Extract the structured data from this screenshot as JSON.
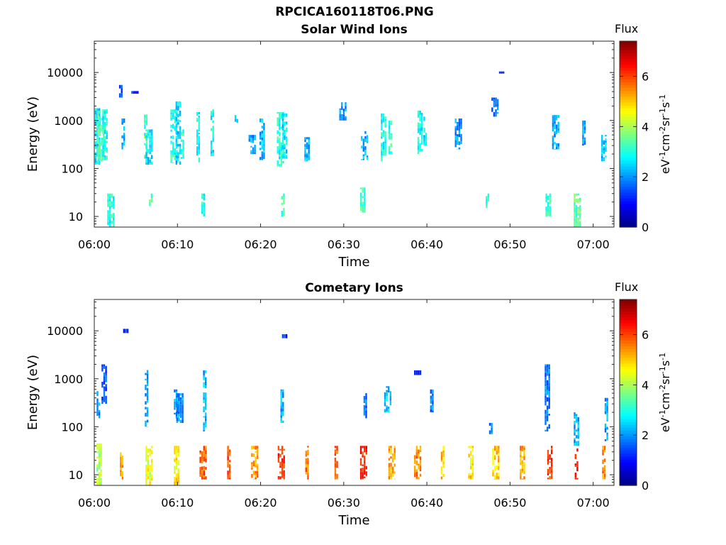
{
  "figure_title": "RPCICA160118T06.PNG",
  "colormap": [
    "#00007f",
    "#0000ff",
    "#007fff",
    "#00ffff",
    "#7fff7f",
    "#ffff00",
    "#ff7f00",
    "#ff0000",
    "#7f0000"
  ],
  "chart_data": [
    {
      "type": "heatmap",
      "title": "Solar Wind Ions",
      "xlabel": "Time",
      "ylabel": "Energy (eV)",
      "x_ticks": [
        "06:00",
        "06:10",
        "06:20",
        "06:30",
        "06:40",
        "06:50",
        "07:00"
      ],
      "x_range_min": [
        0,
        62.5
      ],
      "y_scale": "log",
      "y_ticks": [
        "10",
        "100",
        "1000",
        "10000"
      ],
      "y_range_eV": [
        6,
        45000
      ],
      "colorbar": {
        "title": "Flux",
        "label": "eV-1cm-2sr-1s-1",
        "ticks": [
          "0",
          "2",
          "4",
          "6"
        ],
        "range": [
          0,
          7.4
        ]
      },
      "grid": false,
      "events": [
        {
          "t": 0.4,
          "e": [
            120,
            1800
          ],
          "lvl": 2.6
        },
        {
          "t": 0.8,
          "e": [
            140,
            1600
          ],
          "lvl": 3.3
        },
        {
          "t": 1.3,
          "e": [
            150,
            1700
          ],
          "lvl": 2.9
        },
        {
          "t": 3.2,
          "e": [
            3000,
            5500
          ],
          "lvl": 1.3
        },
        {
          "t": 3.5,
          "e": [
            250,
            1100
          ],
          "lvl": 2.2
        },
        {
          "t": 4.9,
          "e": [
            3600,
            4100
          ],
          "lvl": 1.2
        },
        {
          "t": 6.2,
          "e": [
            160,
            1500
          ],
          "lvl": 3.2
        },
        {
          "t": 6.6,
          "e": [
            120,
            650
          ],
          "lvl": 2.6
        },
        {
          "t": 9.6,
          "e": [
            130,
            1700
          ],
          "lvl": 3.0
        },
        {
          "t": 10.1,
          "e": [
            120,
            2500
          ],
          "lvl": 2.5
        },
        {
          "t": 10.6,
          "e": [
            150,
            650
          ],
          "lvl": 3.2
        },
        {
          "t": 12.5,
          "e": [
            120,
            1500
          ],
          "lvl": 2.8
        },
        {
          "t": 14.2,
          "e": [
            180,
            1700
          ],
          "lvl": 2.7
        },
        {
          "t": 17.1,
          "e": [
            900,
            1300
          ],
          "lvl": 2.2
        },
        {
          "t": 19.0,
          "e": [
            200,
            500
          ],
          "lvl": 2.0
        },
        {
          "t": 20.2,
          "e": [
            150,
            1100
          ],
          "lvl": 2.3
        },
        {
          "t": 22.4,
          "e": [
            110,
            1500
          ],
          "lvl": 3.0
        },
        {
          "t": 22.9,
          "e": [
            160,
            1400
          ],
          "lvl": 2.6
        },
        {
          "t": 25.6,
          "e": [
            140,
            450
          ],
          "lvl": 2.2
        },
        {
          "t": 29.9,
          "e": [
            1000,
            2400
          ],
          "lvl": 2.0
        },
        {
          "t": 32.5,
          "e": [
            150,
            600
          ],
          "lvl": 2.2
        },
        {
          "t": 34.8,
          "e": [
            140,
            1400
          ],
          "lvl": 2.9
        },
        {
          "t": 35.6,
          "e": [
            200,
            1000
          ],
          "lvl": 3.1
        },
        {
          "t": 39.2,
          "e": [
            200,
            1600
          ],
          "lvl": 2.8
        },
        {
          "t": 39.8,
          "e": [
            300,
            1200
          ],
          "lvl": 2.6
        },
        {
          "t": 43.8,
          "e": [
            250,
            1100
          ],
          "lvl": 2.0
        },
        {
          "t": 48.2,
          "e": [
            1200,
            3000
          ],
          "lvl": 1.8
        },
        {
          "t": 49.0,
          "e": [
            9500,
            10500
          ],
          "lvl": 1.1
        },
        {
          "t": 55.5,
          "e": [
            250,
            1300
          ],
          "lvl": 2.0
        },
        {
          "t": 58.9,
          "e": [
            300,
            1000
          ],
          "lvl": 2.0
        },
        {
          "t": 61.3,
          "e": [
            140,
            500
          ],
          "lvl": 2.4
        },
        {
          "t": 2.0,
          "e": [
            6,
            30
          ],
          "lvl": 3.0
        },
        {
          "t": 6.8,
          "e": [
            15,
            30
          ],
          "lvl": 3.3
        },
        {
          "t": 13.1,
          "e": [
            10,
            30
          ],
          "lvl": 3.0
        },
        {
          "t": 22.7,
          "e": [
            10,
            30
          ],
          "lvl": 3.2
        },
        {
          "t": 32.3,
          "e": [
            12,
            40
          ],
          "lvl": 3.3
        },
        {
          "t": 47.3,
          "e": [
            15,
            30
          ],
          "lvl": 3.0
        },
        {
          "t": 54.6,
          "e": [
            10,
            30
          ],
          "lvl": 3.2
        },
        {
          "t": 58.1,
          "e": [
            6,
            30
          ],
          "lvl": 3.4
        }
      ]
    },
    {
      "type": "heatmap",
      "title": "Cometary Ions",
      "xlabel": "Time",
      "ylabel": "Energy (eV)",
      "x_ticks": [
        "06:00",
        "06:10",
        "06:20",
        "06:30",
        "06:40",
        "06:50",
        "07:00"
      ],
      "x_range_min": [
        0,
        62.5
      ],
      "y_scale": "log",
      "y_ticks": [
        "10",
        "100",
        "1000",
        "10000"
      ],
      "y_range_eV": [
        6,
        45000
      ],
      "colorbar": {
        "title": "Flux",
        "label": "eV-1cm-2sr-1s-1",
        "ticks": [
          "0",
          "2",
          "4",
          "6"
        ],
        "range": [
          0,
          7.4
        ]
      },
      "grid": false,
      "events": [
        {
          "t": 0.5,
          "e": [
            150,
            600
          ],
          "lvl": 2.1
        },
        {
          "t": 1.2,
          "e": [
            300,
            2000
          ],
          "lvl": 1.5
        },
        {
          "t": 3.8,
          "e": [
            9000,
            11000
          ],
          "lvl": 1.2
        },
        {
          "t": 6.3,
          "e": [
            100,
            1800
          ],
          "lvl": 2.0
        },
        {
          "t": 9.9,
          "e": [
            150,
            600
          ],
          "lvl": 2.1
        },
        {
          "t": 10.3,
          "e": [
            120,
            500
          ],
          "lvl": 2.0
        },
        {
          "t": 13.3,
          "e": [
            80,
            1500
          ],
          "lvl": 2.2
        },
        {
          "t": 22.6,
          "e": [
            120,
            600
          ],
          "lvl": 2.2
        },
        {
          "t": 22.9,
          "e": [
            7000,
            8500
          ],
          "lvl": 1.2
        },
        {
          "t": 32.6,
          "e": [
            150,
            500
          ],
          "lvl": 1.6
        },
        {
          "t": 35.3,
          "e": [
            200,
            700
          ],
          "lvl": 2.3
        },
        {
          "t": 38.9,
          "e": [
            1200,
            1500
          ],
          "lvl": 1.0
        },
        {
          "t": 40.6,
          "e": [
            200,
            600
          ],
          "lvl": 1.8
        },
        {
          "t": 47.7,
          "e": [
            70,
            120
          ],
          "lvl": 1.9
        },
        {
          "t": 54.5,
          "e": [
            80,
            2000
          ],
          "lvl": 1.8
        },
        {
          "t": 58.0,
          "e": [
            40,
            200
          ],
          "lvl": 2.2
        },
        {
          "t": 61.6,
          "e": [
            50,
            400
          ],
          "lvl": 2.1
        },
        {
          "t": 0.6,
          "e": [
            6,
            45
          ],
          "lvl": 4.0
        },
        {
          "t": 3.3,
          "e": [
            8,
            35
          ],
          "lvl": 5.2
        },
        {
          "t": 6.6,
          "e": [
            6,
            40
          ],
          "lvl": 4.5
        },
        {
          "t": 9.9,
          "e": [
            6,
            40
          ],
          "lvl": 4.7
        },
        {
          "t": 13.1,
          "e": [
            8,
            40
          ],
          "lvl": 5.8
        },
        {
          "t": 16.2,
          "e": [
            8,
            40
          ],
          "lvl": 5.9
        },
        {
          "t": 19.3,
          "e": [
            8,
            40
          ],
          "lvl": 5.4
        },
        {
          "t": 22.5,
          "e": [
            8,
            40
          ],
          "lvl": 6.1
        },
        {
          "t": 25.6,
          "e": [
            8,
            40
          ],
          "lvl": 5.6
        },
        {
          "t": 29.1,
          "e": [
            8,
            40
          ],
          "lvl": 5.9
        },
        {
          "t": 32.4,
          "e": [
            8,
            40
          ],
          "lvl": 6.3
        },
        {
          "t": 35.8,
          "e": [
            8,
            40
          ],
          "lvl": 5.2
        },
        {
          "t": 38.9,
          "e": [
            8,
            40
          ],
          "lvl": 5.5
        },
        {
          "t": 41.9,
          "e": [
            8,
            40
          ],
          "lvl": 5.1
        },
        {
          "t": 45.3,
          "e": [
            8,
            40
          ],
          "lvl": 4.9
        },
        {
          "t": 48.3,
          "e": [
            8,
            40
          ],
          "lvl": 5.0
        },
        {
          "t": 51.5,
          "e": [
            8,
            40
          ],
          "lvl": 5.3
        },
        {
          "t": 54.8,
          "e": [
            8,
            40
          ],
          "lvl": 6.0
        },
        {
          "t": 58.0,
          "e": [
            8,
            40
          ],
          "lvl": 6.1
        },
        {
          "t": 61.3,
          "e": [
            8,
            40
          ],
          "lvl": 5.5
        }
      ]
    }
  ]
}
